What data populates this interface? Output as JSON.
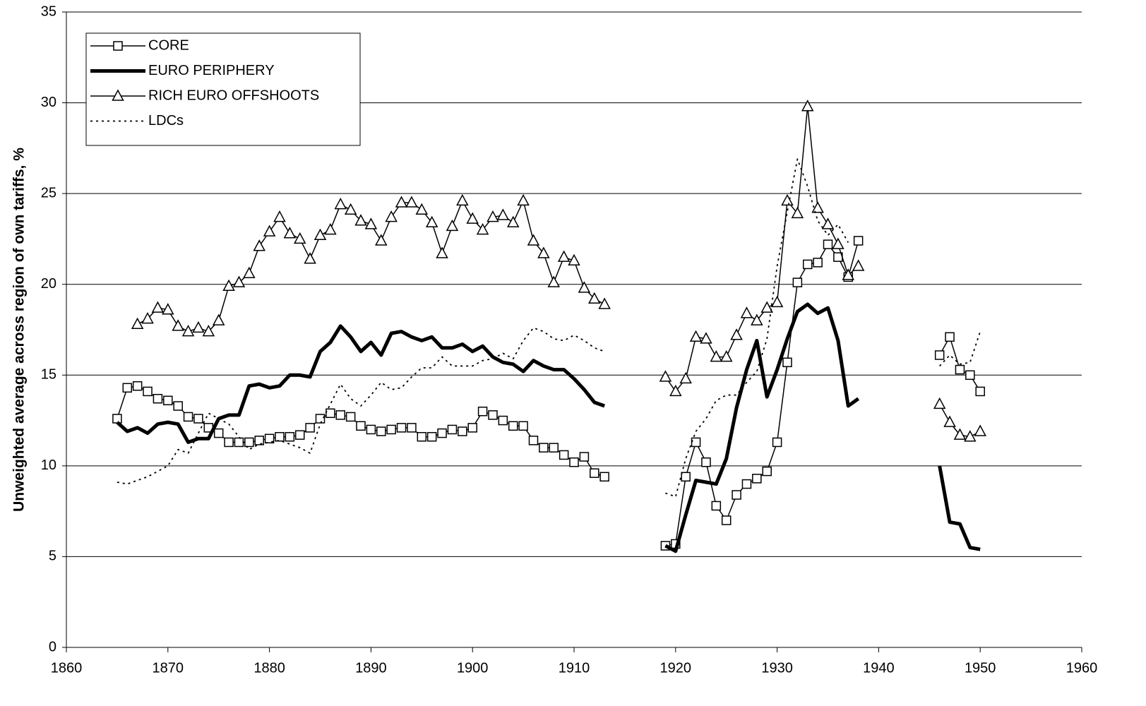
{
  "chart_data": {
    "type": "line",
    "y_label": "Unweighted average across region of own tariffs, %",
    "x": [
      1865,
      1866,
      1867,
      1868,
      1869,
      1870,
      1871,
      1872,
      1873,
      1874,
      1875,
      1876,
      1877,
      1878,
      1879,
      1880,
      1881,
      1882,
      1883,
      1884,
      1885,
      1886,
      1887,
      1888,
      1889,
      1890,
      1891,
      1892,
      1893,
      1894,
      1895,
      1896,
      1897,
      1898,
      1899,
      1900,
      1901,
      1902,
      1903,
      1904,
      1905,
      1906,
      1907,
      1908,
      1909,
      1910,
      1911,
      1912,
      1913,
      1914,
      1915,
      1916,
      1917,
      1918,
      1919,
      1920,
      1921,
      1922,
      1923,
      1924,
      1925,
      1926,
      1927,
      1928,
      1929,
      1930,
      1931,
      1932,
      1933,
      1934,
      1935,
      1936,
      1937,
      1938,
      1939,
      1940,
      1941,
      1942,
      1943,
      1944,
      1945,
      1946,
      1947,
      1948,
      1949,
      1950
    ],
    "series": [
      {
        "name": "CORE",
        "color": "#000000",
        "line_width": 1.5,
        "dash": "solid",
        "marker": "square",
        "values": [
          12.6,
          14.3,
          14.4,
          14.1,
          13.7,
          13.6,
          13.3,
          12.7,
          12.6,
          12.1,
          11.8,
          11.3,
          11.3,
          11.3,
          11.4,
          11.5,
          11.6,
          11.6,
          11.7,
          12.1,
          12.6,
          12.9,
          12.8,
          12.7,
          12.2,
          12.0,
          11.9,
          12.0,
          12.1,
          12.1,
          11.6,
          11.6,
          11.8,
          12.0,
          11.9,
          12.1,
          13.0,
          12.8,
          12.5,
          12.2,
          12.2,
          11.4,
          11.0,
          11.0,
          10.6,
          10.2,
          10.5,
          9.6,
          9.4,
          null,
          null,
          null,
          null,
          null,
          5.6,
          5.7,
          9.4,
          11.3,
          10.2,
          7.8,
          7.0,
          8.4,
          9.0,
          9.3,
          9.7,
          11.3,
          15.7,
          20.1,
          21.1,
          21.2,
          22.2,
          21.5,
          20.4,
          22.4,
          null,
          null,
          null,
          null,
          null,
          null,
          null,
          16.1,
          17.1,
          15.3,
          15.0,
          14.1
        ]
      },
      {
        "name": "EURO PERIPHERY",
        "color": "#000000",
        "line_width": 5,
        "dash": "solid",
        "marker": "none",
        "values": [
          12.4,
          11.9,
          12.1,
          11.8,
          12.3,
          12.4,
          12.3,
          11.3,
          11.5,
          11.5,
          12.6,
          12.8,
          12.8,
          14.4,
          14.5,
          14.3,
          14.4,
          15.0,
          15.0,
          14.9,
          16.3,
          16.8,
          17.7,
          17.1,
          16.3,
          16.8,
          16.1,
          17.3,
          17.4,
          17.1,
          16.9,
          17.1,
          16.5,
          16.5,
          16.7,
          16.3,
          16.6,
          16.0,
          15.7,
          15.6,
          15.2,
          15.8,
          15.5,
          15.3,
          15.3,
          14.8,
          14.2,
          13.5,
          13.3,
          null,
          null,
          null,
          null,
          null,
          5.6,
          5.3,
          7.3,
          9.2,
          9.1,
          9.0,
          10.4,
          13.2,
          15.3,
          16.9,
          13.8,
          15.3,
          17.0,
          18.5,
          18.9,
          18.4,
          18.7,
          16.9,
          13.3,
          13.7,
          null,
          null,
          null,
          null,
          null,
          null,
          null,
          10.0,
          6.9,
          6.8,
          5.5,
          5.4
        ]
      },
      {
        "name": "RICH EURO OFFSHOOTS",
        "color": "#000000",
        "line_width": 1.5,
        "dash": "solid",
        "marker": "triangle",
        "values": [
          null,
          null,
          17.8,
          18.1,
          18.7,
          18.6,
          17.7,
          17.4,
          17.6,
          17.4,
          18.0,
          19.9,
          20.1,
          20.6,
          22.1,
          22.9,
          23.7,
          22.8,
          22.5,
          21.4,
          22.7,
          23.0,
          24.4,
          24.1,
          23.5,
          23.3,
          22.4,
          23.7,
          24.5,
          24.5,
          24.1,
          23.4,
          21.7,
          23.2,
          24.6,
          23.6,
          23.0,
          23.7,
          23.8,
          23.4,
          24.6,
          22.4,
          21.7,
          20.1,
          21.5,
          21.3,
          19.8,
          19.2,
          18.9,
          null,
          null,
          null,
          null,
          null,
          14.9,
          14.1,
          14.8,
          17.1,
          17.0,
          16.0,
          16.0,
          17.2,
          18.4,
          18.0,
          18.7,
          19.0,
          24.6,
          23.9,
          29.8,
          24.2,
          23.3,
          22.2,
          20.5,
          21.0,
          null,
          null,
          null,
          null,
          null,
          null,
          null,
          13.4,
          12.4,
          11.7,
          11.6,
          11.9
        ]
      },
      {
        "name": "LDCs",
        "color": "#000000",
        "line_width": 1.8,
        "dash": "dotted",
        "marker": "none",
        "values": [
          9.1,
          9.0,
          9.2,
          9.4,
          9.7,
          10.0,
          10.9,
          10.7,
          11.8,
          12.9,
          12.6,
          12.3,
          11.6,
          10.9,
          11.2,
          11.3,
          11.4,
          11.2,
          11.0,
          10.7,
          12.3,
          13.4,
          14.5,
          13.7,
          13.3,
          13.9,
          14.6,
          14.2,
          14.3,
          14.9,
          15.4,
          15.4,
          16.0,
          15.5,
          15.5,
          15.5,
          15.8,
          15.9,
          16.2,
          15.9,
          16.9,
          17.6,
          17.4,
          17.0,
          16.9,
          17.2,
          16.9,
          16.5,
          16.3,
          null,
          null,
          null,
          null,
          null,
          8.5,
          8.3,
          10.4,
          11.9,
          12.6,
          13.6,
          13.9,
          13.9,
          14.6,
          15.2,
          17.0,
          21.0,
          24.0,
          26.9,
          25.4,
          23.5,
          22.7,
          23.3,
          22.3,
          null,
          null,
          null,
          null,
          null,
          null,
          null,
          null,
          15.5,
          16.1,
          15.6,
          15.7,
          17.4
        ]
      }
    ],
    "xlim": [
      1860,
      1960
    ],
    "xticks": [
      1860,
      1870,
      1880,
      1890,
      1900,
      1910,
      1920,
      1930,
      1940,
      1950,
      1960
    ],
    "ylim": [
      0,
      35
    ],
    "yticks": [
      0,
      5,
      10,
      15,
      20,
      25,
      30,
      35
    ],
    "grid": true,
    "legend": "upper left"
  }
}
